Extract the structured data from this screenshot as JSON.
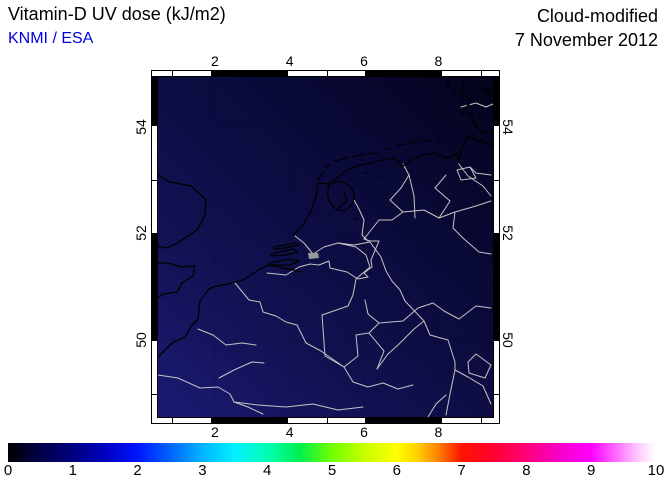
{
  "header": {
    "title": "Vitamin-D UV dose (kJ/m2)",
    "credit": "KNMI / ESA",
    "mode": "Cloud-modified",
    "date": "7 November 2012"
  },
  "colors": {
    "credit_blue": "#0000dd",
    "coastline": "#000000",
    "border_river": "#c4c4c4",
    "frame_white": "#ffffff",
    "frame_black": "#000000",
    "field_bottom_left": "#1b1b74",
    "field_mid": "#0d0d44",
    "field_top_right": "#04041c"
  },
  "map": {
    "x_ticks": [
      {
        "label": "2",
        "frac": 17.0
      },
      {
        "label": "4",
        "frac": 39.3
      },
      {
        "label": "6",
        "frac": 61.5
      },
      {
        "label": "8",
        "frac": 83.7
      }
    ],
    "y_ticks": [
      {
        "label": "54",
        "frac": 14.7
      },
      {
        "label": "52",
        "frac": 46.0
      },
      {
        "label": "50",
        "frac": 77.4
      }
    ],
    "frame": {
      "x_segments": [
        {
          "from": 0,
          "to": 17.0,
          "color": "#ffffff"
        },
        {
          "from": 17.0,
          "to": 39.3,
          "color": "#000000"
        },
        {
          "from": 39.3,
          "to": 61.5,
          "color": "#ffffff"
        },
        {
          "from": 61.5,
          "to": 83.7,
          "color": "#000000"
        },
        {
          "from": 83.7,
          "to": 100,
          "color": "#ffffff"
        }
      ],
      "y_segments": [
        {
          "from": 0,
          "to": 14.7,
          "color": "#000000"
        },
        {
          "from": 14.7,
          "to": 46.0,
          "color": "#ffffff"
        },
        {
          "from": 46.0,
          "to": 77.4,
          "color": "#000000"
        },
        {
          "from": 77.4,
          "to": 100,
          "color": "#ffffff"
        }
      ],
      "x_minor_ticks": [
        5.9,
        28.1,
        50.4,
        72.6,
        94.8
      ],
      "y_minor_ticks": [
        30.4,
        61.7,
        93.0
      ]
    }
  },
  "colorbar": {
    "min": 0,
    "max": 10,
    "ticks": [
      "0",
      "1",
      "2",
      "3",
      "4",
      "5",
      "6",
      "7",
      "8",
      "9",
      "10"
    ],
    "stops": [
      [
        0,
        "#000000"
      ],
      [
        4,
        "#00003c"
      ],
      [
        10,
        "#000080"
      ],
      [
        15,
        "#0000c0"
      ],
      [
        20,
        "#0014ff"
      ],
      [
        25,
        "#0064ff"
      ],
      [
        30,
        "#00b4ff"
      ],
      [
        35,
        "#00f0ff"
      ],
      [
        40,
        "#00ffb4"
      ],
      [
        45,
        "#00f050"
      ],
      [
        50,
        "#70ff00"
      ],
      [
        55,
        "#c8ff00"
      ],
      [
        60,
        "#ffff00"
      ],
      [
        63,
        "#ffd200"
      ],
      [
        66,
        "#ff8c00"
      ],
      [
        70,
        "#ff1400"
      ],
      [
        75,
        "#ff0032"
      ],
      [
        80,
        "#ff0078"
      ],
      [
        85,
        "#f500c8"
      ],
      [
        90,
        "#ff00ff"
      ],
      [
        95,
        "#ff8cff"
      ],
      [
        98,
        "#ffdcff"
      ],
      [
        100,
        "#ffffff"
      ]
    ]
  }
}
